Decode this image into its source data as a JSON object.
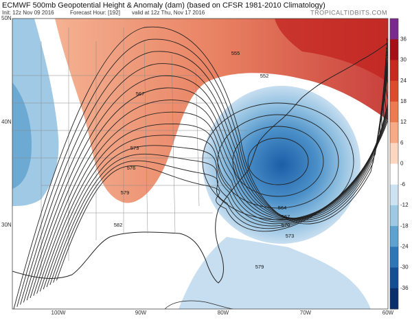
{
  "header": {
    "title": "ECMWF 500mb Geopotential Height & Anomaly (dam) (based on CFSR 1981-2010 Climatology)",
    "init": "Init: 12z Nov 09 2016",
    "forecast_hour": "Forecast Hour: [192]",
    "valid": "valid at 12z Thu, Nov 17 2016",
    "source": "TROPICALTIDBITS.COM"
  },
  "map": {
    "latitude_labels": [
      "50N",
      "40N",
      "30N"
    ],
    "longitude_labels": [
      "100W",
      "90W",
      "80W",
      "70W",
      "60W"
    ],
    "contour_labels": [
      555,
      552,
      567,
      573,
      576,
      579,
      582,
      564,
      567,
      570,
      573,
      579
    ]
  },
  "colorbar": {
    "ticks": [
      36,
      30,
      24,
      18,
      12,
      6,
      0,
      -6,
      -12,
      -18,
      -24,
      -30,
      -36
    ],
    "colors": [
      "#7a2a8c",
      "#a50f15",
      "#c8281f",
      "#de4a2e",
      "#ee7a52",
      "#f6ab86",
      "#fbd6c0",
      "#ffffff",
      "#cde3f1",
      "#9ec9e2",
      "#5fa2cf",
      "#2e76b6",
      "#154f93",
      "#0a2f6b"
    ]
  }
}
